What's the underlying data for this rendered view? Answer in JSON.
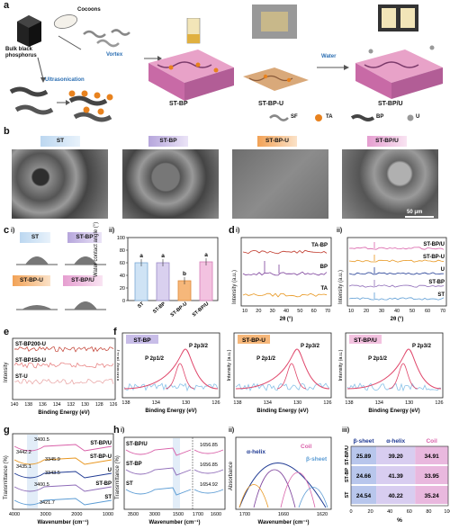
{
  "panel_a": {
    "letter": "a",
    "bulk_bp": "Bulk black phosphorus",
    "cocoons": "Cocoons",
    "vortex": "Vortex",
    "ultrasonication": "Ultrasonication",
    "water": "Water",
    "st_bp": "ST-BP",
    "st_bp_u": "ST-BP-U",
    "st_bp_slash_u": "ST-BP/U",
    "legend": [
      "SF",
      "TA",
      "BP",
      "U"
    ]
  },
  "panel_b": {
    "letter": "b",
    "tags": [
      "ST",
      "ST-BP",
      "ST-BP-U",
      "ST-BP/U"
    ],
    "scale": "50 μm"
  },
  "panel_c": {
    "letter": "c",
    "sub_i": "i)",
    "sub_ii": "ii)",
    "droplet_tags": [
      "ST",
      "ST-BP",
      "ST-BP-U",
      "ST-BP/U"
    ],
    "chart": {
      "ylabel": "Water contact angle (°)",
      "categories": [
        "ST",
        "ST-BP",
        "ST-BP-U",
        "ST-BP/U"
      ],
      "letters": [
        "a",
        "a",
        "b",
        "a"
      ],
      "yticks": [
        "0",
        "20",
        "40",
        "60",
        "80",
        "100"
      ]
    }
  },
  "panel_d": {
    "letter": "d",
    "sub_i": "i)",
    "sub_ii": "ii)",
    "left_series": [
      "TA-BP",
      "BP",
      "TA"
    ],
    "right_series": [
      "ST-BP/U",
      "ST-BP-U",
      "U",
      "ST-BP",
      "ST"
    ],
    "ylabel": "Intensity (a.u.)",
    "xlabel": "2θ (°)",
    "xticks": [
      "10",
      "20",
      "30",
      "40",
      "50",
      "60",
      "70"
    ]
  },
  "panel_e": {
    "letter": "e",
    "series": [
      "ST-BP200-U",
      "ST-BP150-U",
      "ST-U"
    ],
    "ylabel": "Intensity",
    "xlabel": "Binding Energy (eV)",
    "xticks": [
      "140",
      "138",
      "136",
      "134",
      "132",
      "130",
      "128",
      "126"
    ]
  },
  "panel_f": {
    "letter": "f",
    "tags": [
      "ST-BP",
      "ST-BP-U",
      "ST-BP/U"
    ],
    "p12": "P 2p1/2",
    "p32": "P 2p3/2",
    "ylabel": "Intensity (a.u.)",
    "xlabel": "Binding Energy (eV)",
    "xticks": [
      "138",
      "134",
      "130",
      "126"
    ]
  },
  "panel_g": {
    "letter": "g",
    "series": [
      "ST-BP/U",
      "ST-BP-U",
      "U",
      "ST-BP",
      "ST"
    ],
    "annotations": [
      "3400.5",
      "3442.2",
      "3345.9",
      "3435.1",
      "3343.5",
      "3400.5",
      "3421.7"
    ],
    "ylabel": "Transmittance (%)",
    "xlabel": "Wavenumber (cm⁻¹)",
    "xticks": [
      "4000",
      "3000",
      "2000",
      "1000"
    ]
  },
  "panel_h": {
    "letter": "h",
    "sub_i": "i)",
    "sub_ii": "ii)",
    "sub_iii": "iii)",
    "series": [
      "ST-BP/U",
      "ST-BP",
      "ST"
    ],
    "peaks": [
      "1656.85",
      "1656.85",
      "1654.92"
    ],
    "ylabel_i": "Transmittance (%)",
    "xlabel": "Wavenumber (cm⁻¹)",
    "xticks_i": [
      "3500",
      "3000",
      "1500",
      "1700",
      "1600"
    ],
    "ii_labels": {
      "alpha": "α-helix",
      "coil": "Coil",
      "beta": "β-sheet"
    },
    "ii_ylabel": "Absorbance",
    "ii_xticks": [
      "1700",
      "1660",
      "1620"
    ],
    "iii_headers": [
      "β-sheet",
      "α-helix",
      "Coil"
    ],
    "iii_rows": [
      {
        "name": "ST-BP/U",
        "values": [
          "25.89",
          "39.20",
          "34.91"
        ]
      },
      {
        "name": "ST-BP",
        "values": [
          "24.66",
          "41.39",
          "33.95"
        ]
      },
      {
        "name": "ST",
        "values": [
          "24.54",
          "40.22",
          "35.24"
        ]
      }
    ],
    "iii_xlabel": "%",
    "iii_xticks": [
      "0",
      "20",
      "40",
      "60",
      "80",
      "100"
    ]
  }
}
